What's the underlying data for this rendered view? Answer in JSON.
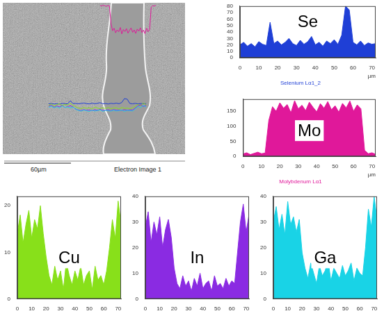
{
  "electron_image": {
    "scale_label": "60µm",
    "caption": "Electron Image 1"
  },
  "chart_data": [
    {
      "type": "area",
      "title": "Se",
      "subtitle": "Selenium Lα1_2",
      "x_label": "µm",
      "color": "#1f3fd6",
      "grid": false,
      "x": [
        0,
        2,
        4,
        6,
        8,
        10,
        12,
        14,
        16,
        18,
        20,
        22,
        24,
        26,
        28,
        30,
        32,
        34,
        36,
        38,
        40,
        42,
        44,
        46,
        48,
        50,
        52,
        54,
        56,
        58,
        60,
        62,
        64,
        66,
        68,
        70,
        72
      ],
      "values": [
        20,
        24,
        18,
        22,
        17,
        25,
        21,
        19,
        55,
        22,
        26,
        20,
        24,
        30,
        22,
        19,
        27,
        21,
        25,
        33,
        20,
        24,
        18,
        26,
        22,
        28,
        21,
        35,
        80,
        74,
        24,
        20,
        26,
        19,
        23,
        21,
        22
      ],
      "xlim": [
        0,
        72
      ],
      "xticks": [
        0,
        10,
        20,
        30,
        40,
        50,
        60,
        70
      ],
      "ylim": [
        0,
        80
      ],
      "yticks": [
        0,
        10,
        20,
        30,
        40,
        50,
        60,
        70,
        80
      ]
    },
    {
      "type": "area",
      "title": "Mo",
      "subtitle": "Molybdenum Lα1",
      "x_label": "µm",
      "color": "#e0189a",
      "grid": false,
      "x": [
        0,
        2,
        4,
        6,
        8,
        10,
        12,
        14,
        16,
        18,
        20,
        22,
        24,
        26,
        28,
        30,
        32,
        34,
        36,
        38,
        40,
        42,
        44,
        46,
        48,
        50,
        52,
        54,
        56,
        58,
        60,
        62,
        64,
        66,
        68,
        70,
        72
      ],
      "values": [
        8,
        12,
        6,
        10,
        14,
        9,
        11,
        120,
        165,
        150,
        178,
        160,
        172,
        145,
        185,
        158,
        170,
        152,
        180,
        163,
        148,
        175,
        160,
        182,
        155,
        168,
        147,
        176,
        161,
        184,
        150,
        171,
        158,
        20,
        9,
        12,
        7
      ],
      "xlim": [
        0,
        72
      ],
      "xticks": [
        0,
        10,
        20,
        30,
        40,
        50,
        60,
        70
      ],
      "ylim": [
        0,
        190
      ],
      "yticks": [
        0,
        50,
        100,
        150
      ]
    },
    {
      "type": "area",
      "title": "Cu",
      "color": "#88e01a",
      "grid": false,
      "x": [
        0,
        2,
        4,
        6,
        8,
        10,
        12,
        14,
        16,
        18,
        20,
        22,
        24,
        26,
        28,
        30,
        32,
        34,
        36,
        38,
        40,
        42,
        44,
        46,
        48,
        50,
        52,
        54,
        56,
        58,
        60,
        62,
        64,
        66,
        68,
        70,
        72
      ],
      "values": [
        14,
        18,
        12,
        16,
        19,
        13,
        17,
        15,
        20,
        14,
        9,
        5,
        3,
        7,
        4,
        6,
        2,
        8,
        5,
        3,
        6,
        4,
        7,
        3,
        5,
        6,
        2,
        7,
        4,
        5,
        3,
        6,
        11,
        17,
        13,
        21,
        16
      ],
      "xlim": [
        0,
        72
      ],
      "xticks": [
        0,
        10,
        20,
        30,
        40,
        50,
        60,
        70
      ],
      "ylim": [
        0,
        22
      ],
      "yticks": [
        0,
        10,
        20
      ]
    },
    {
      "type": "area",
      "title": "In",
      "color": "#8a2be2",
      "grid": false,
      "x": [
        0,
        2,
        4,
        6,
        8,
        10,
        12,
        14,
        16,
        18,
        20,
        22,
        24,
        26,
        28,
        30,
        32,
        34,
        36,
        38,
        40,
        42,
        44,
        46,
        48,
        50,
        52,
        54,
        56,
        58,
        60,
        62,
        64,
        66,
        68,
        70,
        72
      ],
      "values": [
        28,
        34,
        22,
        30,
        25,
        32,
        20,
        27,
        31,
        24,
        12,
        6,
        4,
        9,
        5,
        7,
        3,
        8,
        5,
        10,
        4,
        6,
        7,
        3,
        9,
        5,
        6,
        4,
        8,
        5,
        7,
        6,
        18,
        30,
        37,
        26,
        33
      ],
      "xlim": [
        0,
        72
      ],
      "xticks": [
        0,
        10,
        20,
        30,
        40,
        50,
        60,
        70
      ],
      "ylim": [
        0,
        40
      ],
      "yticks": [
        0,
        10,
        20,
        30,
        40
      ]
    },
    {
      "type": "area",
      "title": "Ga",
      "color": "#19d3e6",
      "grid": false,
      "x": [
        0,
        2,
        4,
        6,
        8,
        10,
        12,
        14,
        16,
        18,
        20,
        22,
        24,
        26,
        28,
        30,
        32,
        34,
        36,
        38,
        40,
        42,
        44,
        46,
        48,
        50,
        52,
        54,
        56,
        58,
        60,
        62,
        64,
        66,
        68,
        70,
        72
      ],
      "values": [
        30,
        36,
        27,
        33,
        25,
        38,
        29,
        32,
        26,
        31,
        18,
        12,
        8,
        14,
        10,
        6,
        13,
        9,
        11,
        15,
        7,
        12,
        10,
        8,
        13,
        9,
        11,
        14,
        7,
        12,
        10,
        9,
        20,
        35,
        28,
        40,
        31
      ],
      "xlim": [
        0,
        72
      ],
      "xticks": [
        0,
        10,
        20,
        30,
        40,
        50,
        60,
        70
      ],
      "ylim": [
        0,
        40
      ],
      "yticks": [
        0,
        10,
        20,
        30,
        40
      ]
    }
  ]
}
